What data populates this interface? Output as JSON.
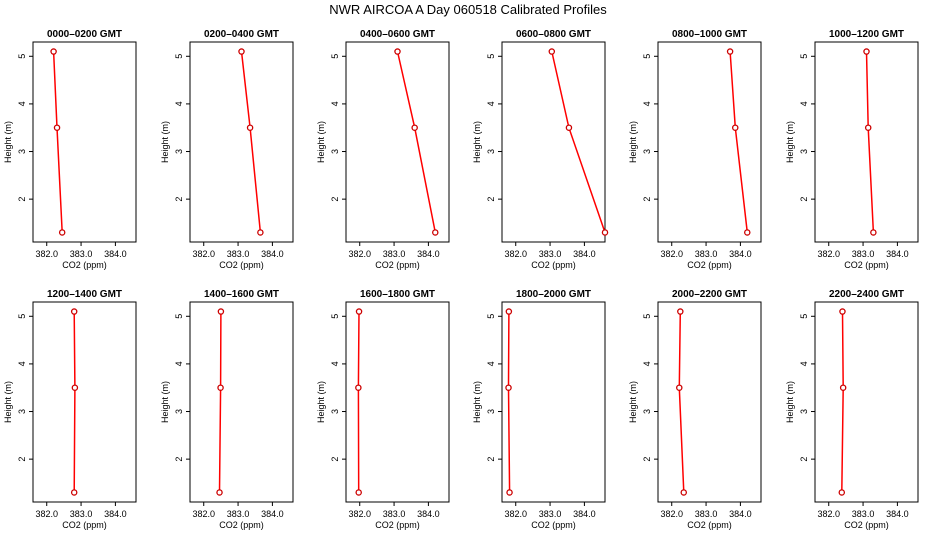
{
  "title": "NWR AIRCOA A  Day 060518  Calibrated Profiles",
  "colors": {
    "line": "#ff0000",
    "marker": "#cc0000",
    "axis": "#000000",
    "background": "#ffffff"
  },
  "chart_data": [
    {
      "type": "line",
      "title": "0000–0200 GMT",
      "xlabel": "CO2 (ppm)",
      "ylabel": "Height (m)",
      "xlim": [
        381.6,
        384.6
      ],
      "ylim": [
        1.1,
        5.3
      ],
      "xticks": [
        382.0,
        383.0,
        384.0
      ],
      "xtick_labels": [
        "382.0",
        "383.0",
        "384.0"
      ],
      "yticks": [
        2,
        3,
        4,
        5
      ],
      "ytick_labels": [
        "2",
        "3",
        "4",
        "5"
      ],
      "series": [
        {
          "name": "CO2",
          "x": [
            382.2,
            382.3,
            382.45
          ],
          "y": [
            5.1,
            3.5,
            1.3
          ]
        }
      ]
    },
    {
      "type": "line",
      "title": "0200–0400 GMT",
      "xlabel": "CO2 (ppm)",
      "ylabel": "Height (m)",
      "xlim": [
        381.6,
        384.6
      ],
      "ylim": [
        1.1,
        5.3
      ],
      "xticks": [
        382.0,
        383.0,
        384.0
      ],
      "xtick_labels": [
        "382.0",
        "383.0",
        "384.0"
      ],
      "yticks": [
        2,
        3,
        4,
        5
      ],
      "ytick_labels": [
        "2",
        "3",
        "4",
        "5"
      ],
      "series": [
        {
          "name": "CO2",
          "x": [
            383.1,
            383.35,
            383.65
          ],
          "y": [
            5.1,
            3.5,
            1.3
          ]
        }
      ]
    },
    {
      "type": "line",
      "title": "0400–0600 GMT",
      "xlabel": "CO2 (ppm)",
      "ylabel": "Height (m)",
      "xlim": [
        381.6,
        384.6
      ],
      "ylim": [
        1.1,
        5.3
      ],
      "xticks": [
        382.0,
        383.0,
        384.0
      ],
      "xtick_labels": [
        "382.0",
        "383.0",
        "384.0"
      ],
      "yticks": [
        2,
        3,
        4,
        5
      ],
      "ytick_labels": [
        "2",
        "3",
        "4",
        "5"
      ],
      "series": [
        {
          "name": "CO2",
          "x": [
            383.1,
            383.6,
            384.2
          ],
          "y": [
            5.1,
            3.5,
            1.3
          ]
        }
      ]
    },
    {
      "type": "line",
      "title": "0600–0800 GMT",
      "xlabel": "CO2 (ppm)",
      "ylabel": "Height (m)",
      "xlim": [
        381.6,
        384.6
      ],
      "ylim": [
        1.1,
        5.3
      ],
      "xticks": [
        382.0,
        383.0,
        384.0
      ],
      "xtick_labels": [
        "382.0",
        "383.0",
        "384.0"
      ],
      "yticks": [
        2,
        3,
        4,
        5
      ],
      "ytick_labels": [
        "2",
        "3",
        "4",
        "5"
      ],
      "series": [
        {
          "name": "CO2",
          "x": [
            383.05,
            383.55,
            384.6
          ],
          "y": [
            5.1,
            3.5,
            1.3
          ]
        }
      ]
    },
    {
      "type": "line",
      "title": "0800–1000 GMT",
      "xlabel": "CO2 (ppm)",
      "ylabel": "Height (m)",
      "xlim": [
        381.6,
        384.6
      ],
      "ylim": [
        1.1,
        5.3
      ],
      "xticks": [
        382.0,
        383.0,
        384.0
      ],
      "xtick_labels": [
        "382.0",
        "383.0",
        "384.0"
      ],
      "yticks": [
        2,
        3,
        4,
        5
      ],
      "ytick_labels": [
        "2",
        "3",
        "4",
        "5"
      ],
      "series": [
        {
          "name": "CO2",
          "x": [
            383.7,
            383.85,
            384.2
          ],
          "y": [
            5.1,
            3.5,
            1.3
          ]
        }
      ]
    },
    {
      "type": "line",
      "title": "1000–1200 GMT",
      "xlabel": "CO2 (ppm)",
      "ylabel": "Height (m)",
      "xlim": [
        381.6,
        384.6
      ],
      "ylim": [
        1.1,
        5.3
      ],
      "xticks": [
        382.0,
        383.0,
        384.0
      ],
      "xtick_labels": [
        "382.0",
        "383.0",
        "384.0"
      ],
      "yticks": [
        2,
        3,
        4,
        5
      ],
      "ytick_labels": [
        "2",
        "3",
        "4",
        "5"
      ],
      "series": [
        {
          "name": "CO2",
          "x": [
            383.1,
            383.15,
            383.3
          ],
          "y": [
            5.1,
            3.5,
            1.3
          ]
        }
      ]
    },
    {
      "type": "line",
      "title": "1200–1400 GMT",
      "xlabel": "CO2 (ppm)",
      "ylabel": "Height (m)",
      "xlim": [
        381.6,
        384.6
      ],
      "ylim": [
        1.1,
        5.3
      ],
      "xticks": [
        382.0,
        383.0,
        384.0
      ],
      "xtick_labels": [
        "382.0",
        "383.0",
        "384.0"
      ],
      "yticks": [
        2,
        3,
        4,
        5
      ],
      "ytick_labels": [
        "2",
        "3",
        "4",
        "5"
      ],
      "series": [
        {
          "name": "CO2",
          "x": [
            382.8,
            382.82,
            382.8
          ],
          "y": [
            5.1,
            3.5,
            1.3
          ]
        }
      ]
    },
    {
      "type": "line",
      "title": "1400–1600 GMT",
      "xlabel": "CO2 (ppm)",
      "ylabel": "Height (m)",
      "xlim": [
        381.6,
        384.6
      ],
      "ylim": [
        1.1,
        5.3
      ],
      "xticks": [
        382.0,
        383.0,
        384.0
      ],
      "xtick_labels": [
        "382.0",
        "383.0",
        "384.0"
      ],
      "yticks": [
        2,
        3,
        4,
        5
      ],
      "ytick_labels": [
        "2",
        "3",
        "4",
        "5"
      ],
      "series": [
        {
          "name": "CO2",
          "x": [
            382.5,
            382.49,
            382.46
          ],
          "y": [
            5.1,
            3.5,
            1.3
          ]
        }
      ]
    },
    {
      "type": "line",
      "title": "1600–1800 GMT",
      "xlabel": "CO2 (ppm)",
      "ylabel": "Height (m)",
      "xlim": [
        381.6,
        384.6
      ],
      "ylim": [
        1.1,
        5.3
      ],
      "xticks": [
        382.0,
        383.0,
        384.0
      ],
      "xtick_labels": [
        "382.0",
        "383.0",
        "384.0"
      ],
      "yticks": [
        2,
        3,
        4,
        5
      ],
      "ytick_labels": [
        "2",
        "3",
        "4",
        "5"
      ],
      "series": [
        {
          "name": "CO2",
          "x": [
            381.98,
            381.96,
            381.97
          ],
          "y": [
            5.1,
            3.5,
            1.3
          ]
        }
      ]
    },
    {
      "type": "line",
      "title": "1800–2000 GMT",
      "xlabel": "CO2 (ppm)",
      "ylabel": "Height (m)",
      "xlim": [
        381.6,
        384.6
      ],
      "ylim": [
        1.1,
        5.3
      ],
      "xticks": [
        382.0,
        383.0,
        384.0
      ],
      "xtick_labels": [
        "382.0",
        "383.0",
        "384.0"
      ],
      "yticks": [
        2,
        3,
        4,
        5
      ],
      "ytick_labels": [
        "2",
        "3",
        "4",
        "5"
      ],
      "series": [
        {
          "name": "CO2",
          "x": [
            381.8,
            381.79,
            381.82
          ],
          "y": [
            5.1,
            3.5,
            1.3
          ]
        }
      ]
    },
    {
      "type": "line",
      "title": "2000–2200 GMT",
      "xlabel": "CO2 (ppm)",
      "ylabel": "Height (m)",
      "xlim": [
        381.6,
        384.6
      ],
      "ylim": [
        1.1,
        5.3
      ],
      "xticks": [
        382.0,
        383.0,
        384.0
      ],
      "xtick_labels": [
        "382.0",
        "383.0",
        "384.0"
      ],
      "yticks": [
        2,
        3,
        4,
        5
      ],
      "ytick_labels": [
        "2",
        "3",
        "4",
        "5"
      ],
      "series": [
        {
          "name": "CO2",
          "x": [
            382.25,
            382.22,
            382.35
          ],
          "y": [
            5.1,
            3.5,
            1.3
          ]
        }
      ]
    },
    {
      "type": "line",
      "title": "2200–2400 GMT",
      "xlabel": "CO2 (ppm)",
      "ylabel": "Height (m)",
      "xlim": [
        381.6,
        384.6
      ],
      "ylim": [
        1.1,
        5.3
      ],
      "xticks": [
        382.0,
        383.0,
        384.0
      ],
      "xtick_labels": [
        "382.0",
        "383.0",
        "384.0"
      ],
      "yticks": [
        2,
        3,
        4,
        5
      ],
      "ytick_labels": [
        "2",
        "3",
        "4",
        "5"
      ],
      "series": [
        {
          "name": "CO2",
          "x": [
            382.4,
            382.42,
            382.38
          ],
          "y": [
            5.1,
            3.5,
            1.3
          ]
        }
      ]
    }
  ]
}
